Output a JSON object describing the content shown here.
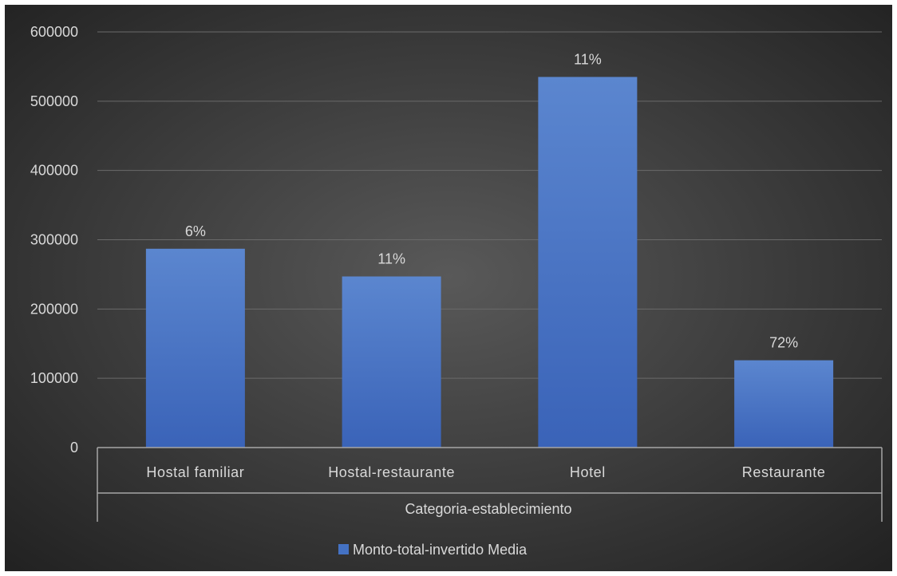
{
  "chart_data": {
    "type": "bar",
    "title": "",
    "xlabel": "Categoria-establecimiento",
    "ylabel": "",
    "categories": [
      "Hostal familiar",
      "Hostal-restaurante",
      "Hotel",
      "Restaurante"
    ],
    "series": [
      {
        "name": "Monto-total-invertido Media",
        "values": [
          287000,
          247000,
          535000,
          126000
        ],
        "data_labels": [
          "6%",
          "11%",
          "11%",
          "72%"
        ]
      }
    ],
    "ylim": [
      0,
      600000
    ],
    "yticks": [
      "0",
      "100000",
      "200000",
      "300000",
      "400000",
      "500000",
      "600000"
    ],
    "grid": true,
    "legend_position": "bottom",
    "colors": {
      "bar": "#4472c4",
      "bar_top": "#5b86cf",
      "bar_bottom": "#3a63b8",
      "background_center": "#595959",
      "background_edge": "#1f1f1f",
      "text": "#d9d9d9",
      "gridline": "#6a6a6a",
      "axis": "#a6a6a6"
    }
  }
}
